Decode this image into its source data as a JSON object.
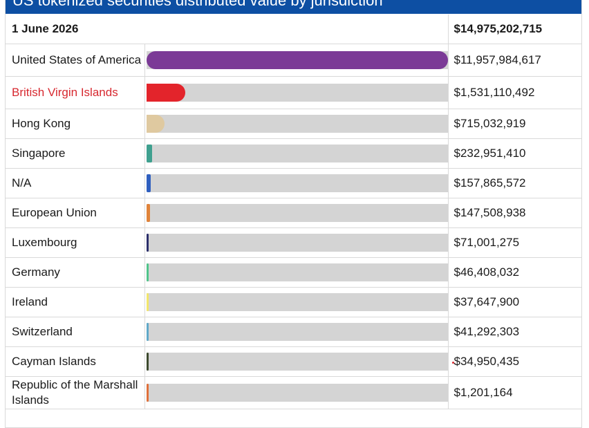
{
  "title": "US tokenized securities distributed value by jurisdiction",
  "header": {
    "date": "1 June 2026",
    "total": "$14,975,202,715"
  },
  "colors": {
    "header_bg": "#0d4fa3",
    "track": "#d4d4d4"
  },
  "chart_data": {
    "type": "bar",
    "title": "US tokenized securities distributed value by jurisdiction",
    "orientation": "horizontal",
    "date": "1 June 2026",
    "total": "$14,975,202,715",
    "categories": [
      "United States of America",
      "British Virgin Islands",
      "Hong Kong",
      "Singapore",
      "N/A",
      "European Union",
      "Luxembourg",
      "Germany",
      "Ireland",
      "Switzerland",
      "Cayman Islands",
      "Republic of the Marshall Islands"
    ],
    "values": [
      11957984617,
      1531110492,
      715032919,
      232951410,
      157865572,
      147508938,
      71001275,
      46408032,
      37647900,
      41292303,
      34950435,
      1201164
    ],
    "value_labels": [
      "$11,957,984,617",
      "$1,531,110,492",
      "$715,032,919",
      "$232,951,410",
      "$157,865,572",
      "$147,508,938",
      "$71,001,275",
      "$46,408,032",
      "$37,647,900",
      "$41,292,303",
      "$34,950,435",
      "$1,201,164"
    ],
    "bar_colors": [
      "#7b3a96",
      "#e3242b",
      "#dfc9a0",
      "#3fa08f",
      "#2f5fbf",
      "#e0833a",
      "#2b2f6b",
      "#4fc48a",
      "#f2e66b",
      "#5fa8c8",
      "#3d4a2e",
      "#e0703a"
    ],
    "highlight_category": "British Virgin Islands",
    "xlim": [
      0,
      11957984617
    ]
  }
}
